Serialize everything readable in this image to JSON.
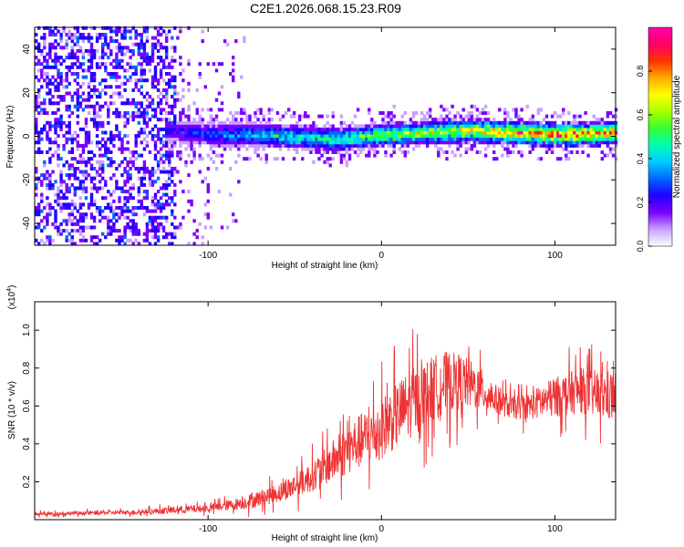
{
  "title": "C2E1.2026.068.15.23.R09",
  "colors": {
    "signal": "#ee3333",
    "frame": "#000000"
  },
  "chart_data": [
    {
      "type": "heatmap",
      "xlabel": "Height of straight line (km)",
      "ylabel": "Frequency (Hz)",
      "xlim": [
        -200,
        135
      ],
      "ylim": [
        -50,
        50
      ],
      "x_ticks": [
        -100,
        0,
        100
      ],
      "y_ticks": [
        -40,
        -20,
        0,
        20,
        40
      ],
      "colorbar": {
        "label": "Normalized spectral amplitude",
        "range": [
          0,
          1
        ],
        "ticks": [
          "0.0",
          "0.2",
          "0.4",
          "0.6",
          "0.8"
        ],
        "colors": [
          "#ffffff",
          "#c8a0ff",
          "#7a00ff",
          "#2200ff",
          "#0066ff",
          "#00ccff",
          "#00ffb0",
          "#33ff33",
          "#aaff00",
          "#ffff00",
          "#ffaa00",
          "#ff3300",
          "#ff0066",
          "#ff00aa"
        ]
      },
      "ridge": {
        "x": [
          -125,
          -100,
          -75,
          -50,
          -25,
          0,
          25,
          50,
          75,
          100,
          135
        ],
        "center_freq": [
          2,
          0,
          0,
          -1,
          -2,
          0,
          1,
          2,
          1,
          0,
          1
        ],
        "amplitude": [
          0.2,
          0.3,
          0.4,
          0.5,
          0.55,
          0.65,
          0.7,
          0.8,
          0.9,
          0.95,
          0.9
        ]
      }
    },
    {
      "type": "line",
      "xlabel": "Height of straight line (km)",
      "ylabel": "SNR (10 * v/v)",
      "y_multiplier": "(x10",
      "y_multiplier_exp": "4",
      "y_multiplier_close": ")",
      "xlim": [
        -200,
        135
      ],
      "ylim": [
        0,
        1.15
      ],
      "x_ticks": [
        -100,
        0,
        100
      ],
      "y_ticks": [
        0.2,
        0.4,
        0.6,
        0.8,
        1.0
      ],
      "series": [
        {
          "x": [
            -200,
            -170,
            -140,
            -120,
            -100,
            -85,
            -75,
            -60,
            -45,
            -35,
            -25,
            -15,
            -5,
            5,
            15,
            25,
            35,
            45,
            55,
            65,
            75,
            85,
            95,
            105,
            115,
            125,
            135
          ],
          "y": [
            0.03,
            0.035,
            0.04,
            0.05,
            0.06,
            0.08,
            0.1,
            0.14,
            0.2,
            0.26,
            0.33,
            0.4,
            0.45,
            0.52,
            0.6,
            0.66,
            0.72,
            0.73,
            0.7,
            0.64,
            0.59,
            0.6,
            0.63,
            0.66,
            0.68,
            0.66,
            0.65
          ],
          "noise": [
            0.01,
            0.01,
            0.012,
            0.02,
            0.02,
            0.03,
            0.04,
            0.05,
            0.07,
            0.09,
            0.12,
            0.14,
            0.16,
            0.17,
            0.18,
            0.18,
            0.17,
            0.15,
            0.12,
            0.08,
            0.06,
            0.07,
            0.1,
            0.11,
            0.12,
            0.13,
            0.14
          ]
        }
      ]
    }
  ]
}
